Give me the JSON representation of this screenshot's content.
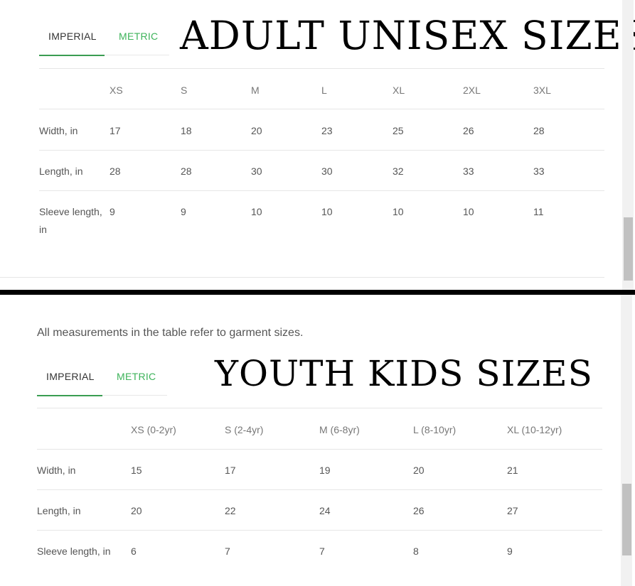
{
  "adult": {
    "title": "ADULT UNISEX SIZES",
    "tabs": [
      {
        "label": "IMPERIAL",
        "active": true
      },
      {
        "label": "METRIC",
        "active": false
      }
    ],
    "columns": [
      "",
      "XS",
      "S",
      "M",
      "L",
      "XL",
      "2XL",
      "3XL"
    ],
    "rows": [
      {
        "label": "Width, in",
        "values": [
          "17",
          "18",
          "20",
          "23",
          "25",
          "26",
          "28"
        ]
      },
      {
        "label": "Length, in",
        "values": [
          "28",
          "28",
          "30",
          "30",
          "32",
          "33",
          "33"
        ]
      },
      {
        "label": "Sleeve length, in",
        "values": [
          "9",
          "9",
          "10",
          "10",
          "10",
          "10",
          "11"
        ]
      }
    ]
  },
  "youth": {
    "note": "All measurements in the table refer to garment sizes.",
    "title": "YOUTH KIDS SIZES",
    "tabs": [
      {
        "label": "IMPERIAL",
        "active": true
      },
      {
        "label": "METRIC",
        "active": false
      }
    ],
    "columns": [
      "",
      "XS (0-2yr)",
      "S (2-4yr)",
      "M (6-8yr)",
      "L (8-10yr)",
      "XL (10-12yr)"
    ],
    "rows": [
      {
        "label": "Width, in",
        "values": [
          "15",
          "17",
          "19",
          "20",
          "21"
        ]
      },
      {
        "label": "Length, in",
        "values": [
          "20",
          "22",
          "24",
          "26",
          "27"
        ]
      },
      {
        "label": "Sleeve length, in",
        "values": [
          "6",
          "7",
          "7",
          "8",
          "9"
        ]
      }
    ]
  },
  "colors": {
    "accent": "#3a9d52",
    "tab_inactive": "#3db35a"
  }
}
